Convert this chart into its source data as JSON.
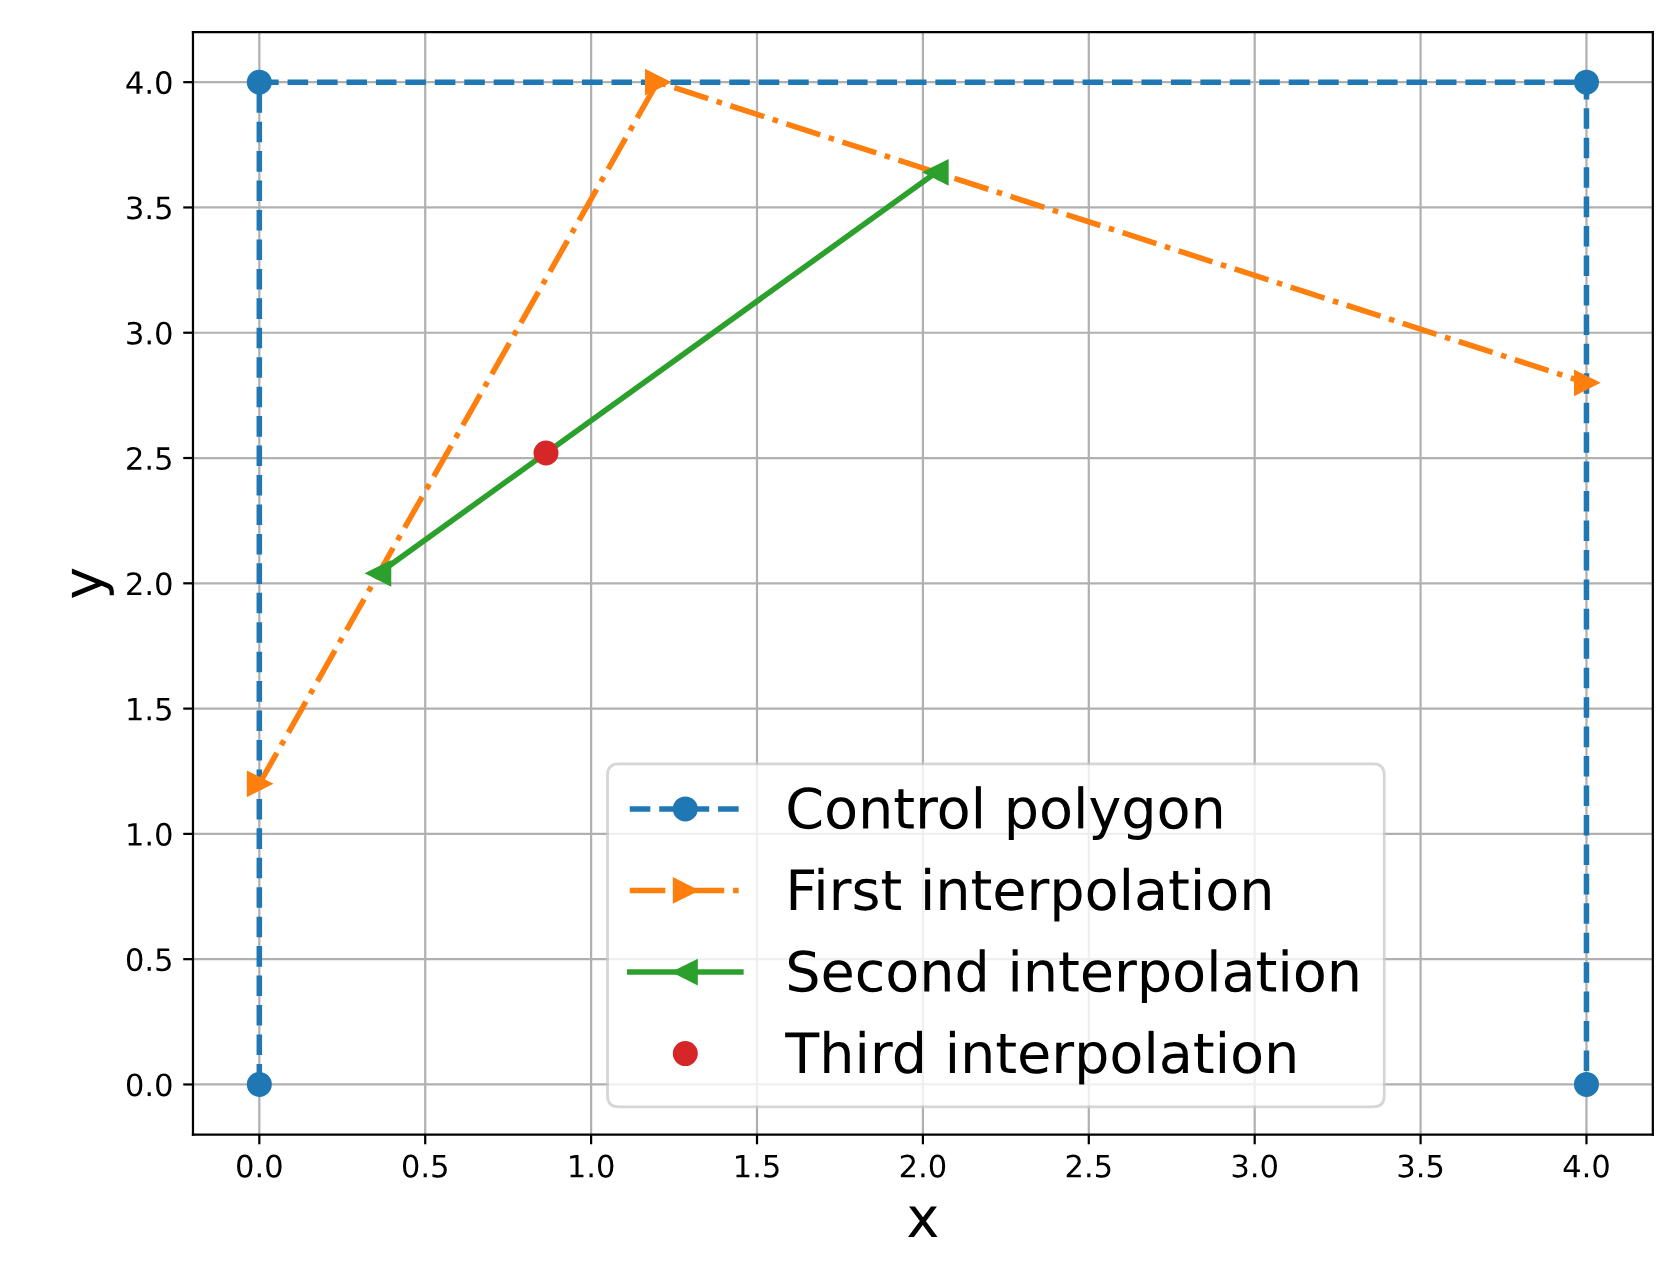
{
  "chart_data": {
    "type": "line",
    "xlabel": "x",
    "ylabel": "y",
    "xlim": [
      -0.2,
      4.2
    ],
    "ylim": [
      -0.2,
      4.2
    ],
    "xticks": [
      {
        "value": 0,
        "label": "0.0"
      },
      0.5,
      {
        "value": 1,
        "label": "1.0"
      },
      1.5,
      {
        "value": 2,
        "label": "2.0"
      },
      2.5,
      {
        "value": 3,
        "label": "3.0"
      },
      3.5,
      {
        "value": 4,
        "label": "4.0"
      }
    ],
    "yticks": [
      {
        "value": 0,
        "label": "0.0"
      },
      0.5,
      {
        "value": 1,
        "label": "1.0"
      },
      1.5,
      {
        "value": 2,
        "label": "2.0"
      },
      2.5,
      {
        "value": 3,
        "label": "3.0"
      },
      3.5,
      {
        "value": 4,
        "label": "4.0"
      }
    ],
    "grid": true,
    "legend": "bottom",
    "series": [
      {
        "name": "Control polygon",
        "color": "#1f77b4",
        "x": [
          0,
          0,
          4,
          4
        ],
        "values": [
          0,
          4,
          4,
          0
        ],
        "marker": "circle",
        "line_style": "dashed"
      },
      {
        "name": "First interpolation",
        "color": "#ff7f0e",
        "x": [
          0,
          1.2,
          4
        ],
        "values": [
          1.2,
          4,
          2.8
        ],
        "marker": "triangle",
        "line_style": "dashdot"
      },
      {
        "name": "Second interpolation",
        "color": "#2ca02c",
        "x": [
          0.36,
          2.04
        ],
        "values": [
          2.04,
          3.64
        ],
        "marker": "triangle",
        "line_style": "solid"
      },
      {
        "name": "Third interpolation",
        "color": "#d62728",
        "type": "scatter",
        "x": [
          0.864
        ],
        "values": [
          2.52
        ],
        "marker": "circle"
      }
    ]
  }
}
